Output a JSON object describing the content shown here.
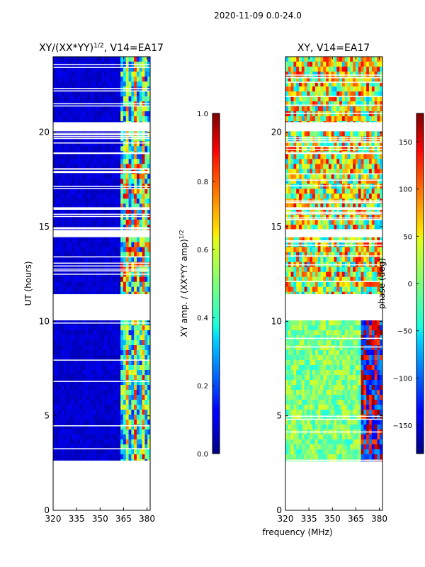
{
  "page": {
    "suptitle": "2020-11-09 0.0-24.0"
  },
  "chart_data": [
    {
      "type": "heatmap",
      "title": "XY/(XX*YY)^1/2, V14=EA17",
      "title_main": "XY/(XX*YY)",
      "title_exp": "1/2",
      "title_tail": ", V14=EA17",
      "xlabel": "",
      "ylabel": "UT (hours)",
      "xlim": [
        320,
        382
      ],
      "ylim": [
        0,
        24
      ],
      "xticks": [
        "320",
        "335",
        "350",
        "365",
        "380"
      ],
      "xtick_values": [
        320,
        335,
        350,
        365,
        380
      ],
      "yticks": [
        "0",
        "5",
        "10",
        "15",
        "20"
      ],
      "ytick_values": [
        0,
        5,
        10,
        15,
        20
      ],
      "data_blocks_hours": [
        [
          2.6,
          10.05
        ],
        [
          11.45,
          14.45
        ],
        [
          14.85,
          15.9
        ],
        [
          16.05,
          18.85
        ],
        [
          18.95,
          20.05
        ],
        [
          20.55,
          24.0
        ]
      ],
      "colorbar": {
        "label_main": "XY amp. / (XX*YY amp)",
        "label_exp": "1/2",
        "range": [
          0.0,
          1.0
        ],
        "ticks": [
          "0.0",
          "0.2",
          "0.4",
          "0.6",
          "0.8",
          "1.0"
        ],
        "tick_values": [
          0.0,
          0.2,
          0.4,
          0.6,
          0.8,
          1.0
        ]
      }
    },
    {
      "type": "heatmap",
      "title": "XY, V14=EA17",
      "xlabel": "frequency (MHz)",
      "ylabel": "",
      "xlim": [
        320,
        382
      ],
      "ylim": [
        0,
        24
      ],
      "xticks": [
        "320",
        "335",
        "350",
        "365",
        "380"
      ],
      "xtick_values": [
        320,
        335,
        350,
        365,
        380
      ],
      "yticks": [
        "0",
        "5",
        "10",
        "15",
        "20"
      ],
      "ytick_values": [
        0,
        5,
        10,
        15,
        20
      ],
      "data_blocks_hours": [
        [
          2.6,
          10.05
        ],
        [
          11.45,
          14.45
        ],
        [
          14.85,
          15.9
        ],
        [
          16.05,
          18.85
        ],
        [
          18.95,
          20.05
        ],
        [
          20.55,
          24.0
        ]
      ],
      "colorbar": {
        "label": "phase (deg)",
        "range": [
          -180,
          180
        ],
        "ticks": [
          "−150",
          "−100",
          "−50",
          "0",
          "50",
          "100",
          "150"
        ],
        "tick_values": [
          -150,
          -100,
          -50,
          0,
          50,
          100,
          150
        ]
      }
    }
  ]
}
